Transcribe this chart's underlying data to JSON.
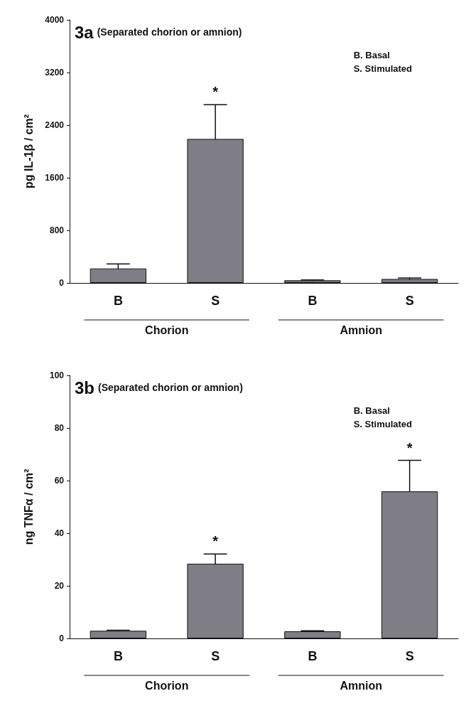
{
  "chart_data": [
    {
      "type": "bar",
      "title": "3a (Separated chorion or amnion)",
      "subtitle": "B. Basal\nS. Stimulated",
      "ylabel": "pg IL-1β / cm²",
      "categories": [
        "B",
        "S",
        "B",
        "S"
      ],
      "values": [
        220,
        2190,
        40,
        60
      ],
      "color": "#7f7d85",
      "errors": [
        70,
        520,
        5,
        15
      ],
      "value_labels": [
        null,
        "*",
        null,
        null
      ],
      "annotations": [
        "Chorion",
        "Amnion"
      ],
      "ylim": [
        0,
        4000
      ],
      "yticks": [
        0,
        800,
        1600,
        2400,
        3200,
        4000
      ],
      "grid": false
    },
    {
      "type": "bar",
      "title": "3b (Separated chorion or amnion)",
      "subtitle": "B. Basal\nS. Stimulated",
      "ylabel": "ng TNFα / cm²",
      "categories": [
        "B",
        "S",
        "B",
        "S"
      ],
      "values": [
        2.9,
        28.4,
        2.7,
        55.9
      ],
      "color": "#7f7d85",
      "errors": [
        0.2,
        3.7,
        0.2,
        11.8
      ],
      "value_labels": [
        null,
        "*",
        null,
        "*"
      ],
      "annotations": [
        "Chorion",
        "Amnion"
      ],
      "ylim": [
        0,
        100
      ],
      "yticks": [
        0,
        20,
        40,
        60,
        80,
        100
      ],
      "grid": false
    }
  ]
}
